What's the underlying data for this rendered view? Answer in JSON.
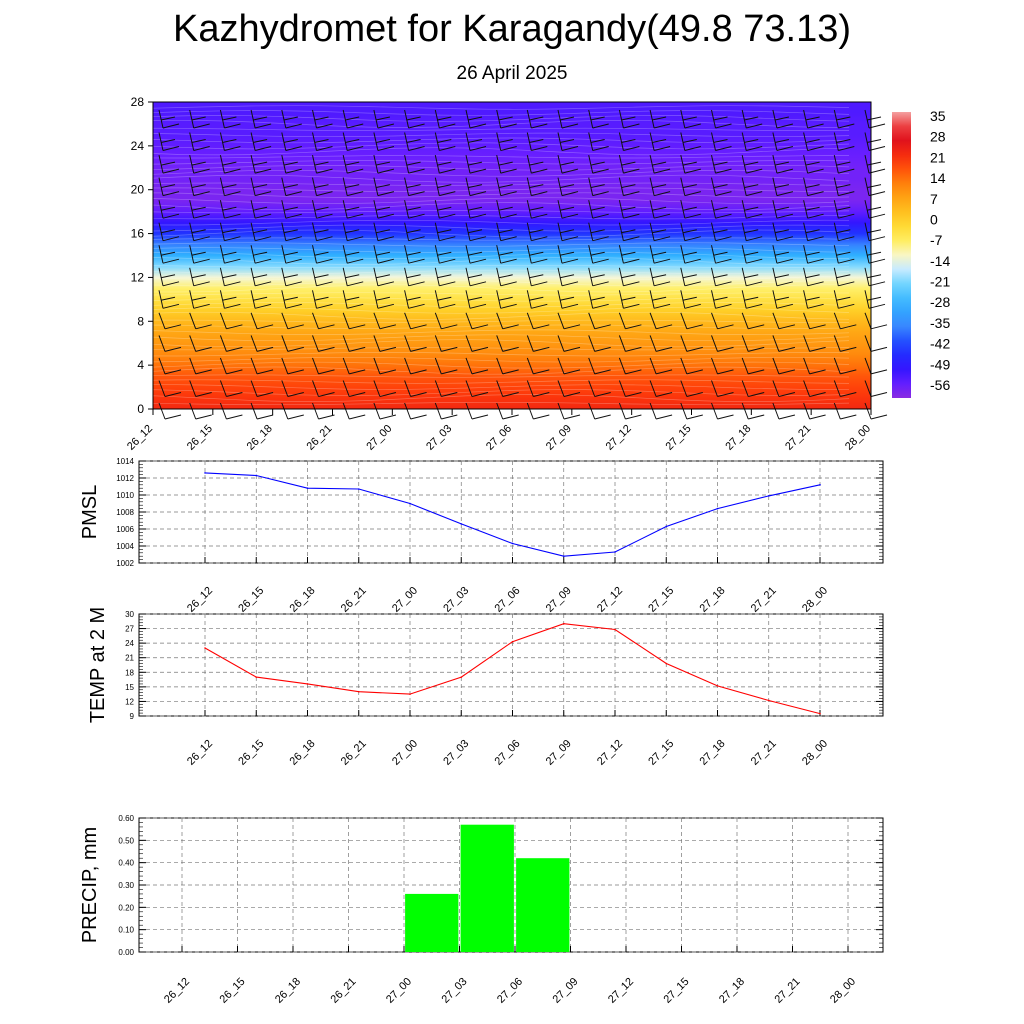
{
  "header": {
    "title": "Kazhydromet for Karagandy(49.8 73.13)",
    "subtitle": "26 April 2025"
  },
  "chart_data": [
    {
      "type": "heatmap",
      "title": "",
      "xlabel": "",
      "ylabel": "",
      "x_ticks": [
        "26_12",
        "26_15",
        "26_18",
        "26_21",
        "27_00",
        "27_03",
        "27_06",
        "27_09",
        "27_12",
        "27_15",
        "27_18",
        "27_21",
        "28_00"
      ],
      "y_ticks": [
        0,
        4,
        8,
        12,
        16,
        20,
        24,
        28
      ],
      "ylim": [
        0,
        28
      ],
      "colorbar_labels": [
        "35",
        "28",
        "21",
        "14",
        "7",
        "0",
        "-7",
        "-14",
        "-21",
        "-28",
        "-35",
        "-42",
        "-49",
        "-56"
      ],
      "colorbar_range": [
        -60,
        38
      ],
      "temperature_profile": {
        "levels": [
          0,
          1,
          2,
          3,
          4,
          5,
          6,
          7,
          8,
          9,
          10,
          11,
          12,
          13,
          14,
          15,
          16,
          17,
          18,
          19,
          20,
          21,
          22,
          23,
          24,
          25,
          26,
          27,
          28
        ],
        "values": [
          24,
          22,
          20,
          18,
          15,
          12,
          10,
          8,
          5,
          1,
          -3,
          -7,
          -12,
          -20,
          -28,
          -36,
          -44,
          -50,
          -55,
          -58,
          -58,
          -57,
          -57,
          -56,
          -55,
          -54,
          -54,
          -53,
          -53
        ]
      },
      "wind_barbs": true
    },
    {
      "type": "line",
      "ylabel": "PMSL",
      "x": [
        "26_12",
        "26_15",
        "26_18",
        "26_21",
        "27_00",
        "27_03",
        "27_06",
        "27_09",
        "27_12",
        "27_15",
        "27_18",
        "27_21",
        "28_00"
      ],
      "series": [
        {
          "values": [
            1012.6,
            1012.3,
            1010.8,
            1010.7,
            1009.0,
            1006.6,
            1004.3,
            1002.8,
            1003.3,
            1006.3,
            1008.4,
            1009.9,
            1011.2
          ],
          "color": "#0000ff"
        }
      ],
      "ylim": [
        1002,
        1014
      ],
      "y_ticks": [
        1002,
        1004,
        1006,
        1008,
        1010,
        1012,
        1014
      ],
      "grid": true
    },
    {
      "type": "line",
      "ylabel": "TEMP at 2 M",
      "x": [
        "26_12",
        "26_15",
        "26_18",
        "26_21",
        "27_00",
        "27_03",
        "27_06",
        "27_09",
        "27_12",
        "27_15",
        "27_18",
        "27_21",
        "28_00"
      ],
      "series": [
        {
          "values": [
            23.0,
            17.0,
            15.6,
            14.0,
            13.5,
            17.0,
            24.3,
            28.0,
            26.8,
            19.8,
            15.2,
            12.2,
            9.5
          ],
          "color": "#ff0000"
        }
      ],
      "ylim": [
        9,
        30
      ],
      "y_ticks": [
        9,
        12,
        15,
        18,
        21,
        24,
        27,
        30
      ],
      "grid": true
    },
    {
      "type": "bar",
      "ylabel": "PRECIP, mm",
      "categories": [
        "26_12",
        "26_15",
        "26_18",
        "26_21",
        "27_00",
        "27_03",
        "27_06",
        "27_09",
        "27_12",
        "27_15",
        "27_18",
        "27_21",
        "28_00"
      ],
      "values": [
        0,
        0,
        0,
        0,
        0,
        0.26,
        0.57,
        0.42,
        0,
        0,
        0,
        0,
        0
      ],
      "ylim": [
        0,
        0.6
      ],
      "y_ticks": [
        "0.00",
        "0.10",
        "0.20",
        "0.30",
        "0.40",
        "0.50",
        "0.60"
      ],
      "bar_color": "#00ff00",
      "grid": true
    }
  ]
}
